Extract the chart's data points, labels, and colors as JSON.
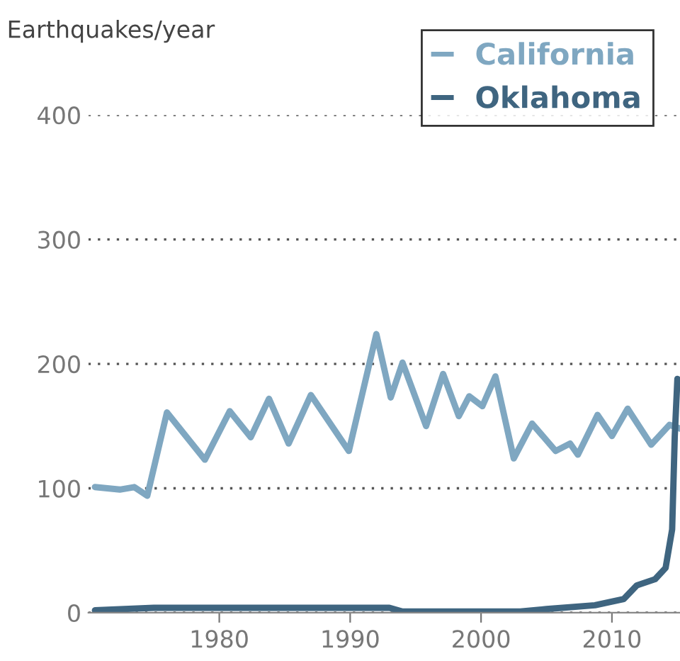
{
  "chart_data": {
    "type": "line",
    "ylabel": "Earthquakes/year",
    "xlim": [
      1970,
      2015.2
    ],
    "ylim": [
      0,
      400
    ],
    "xticks": [
      1980,
      1990,
      2000,
      2010
    ],
    "yticks": [
      0,
      100,
      200,
      300,
      400
    ],
    "grid": "y",
    "legend": "top right",
    "line_style": "solid",
    "marker": "none",
    "series": [
      {
        "name": "California",
        "color": "#7fa7c1",
        "x": [
          1970.5,
          1972.4,
          1973.5,
          1974.5,
          1976.0,
          1978.9,
          1980.8,
          1982.4,
          1983.8,
          1985.3,
          1987.0,
          1989.9,
          1992.0,
          1993.1,
          1994.0,
          1995.8,
          1997.1,
          1998.3,
          1999.1,
          2000.1,
          2001.1,
          2002.5,
          2003.9,
          2005.7,
          2006.8,
          2007.4,
          2008.9,
          2010.0,
          2011.2,
          2013.0,
          2014.4,
          2015.2
        ],
        "values": [
          101,
          99,
          101,
          94,
          161,
          123,
          162,
          141,
          172,
          136,
          175,
          130,
          224,
          173,
          201,
          150,
          192,
          158,
          174,
          166,
          190,
          124,
          152,
          130,
          136,
          127,
          159,
          142,
          164,
          135,
          151,
          148
        ]
      },
      {
        "name": "Oklahoma",
        "color": "#3f6580",
        "x": [
          1970.5,
          1975,
          1993,
          1994,
          2003,
          2005,
          2008.7,
          2010.9,
          2011.9,
          2013.3,
          2014.1,
          2014.6,
          2014.8,
          2015.0
        ],
        "values": [
          2,
          4,
          4,
          1,
          1,
          3,
          6,
          11,
          22,
          27,
          36,
          67,
          142,
          188
        ]
      }
    ]
  }
}
